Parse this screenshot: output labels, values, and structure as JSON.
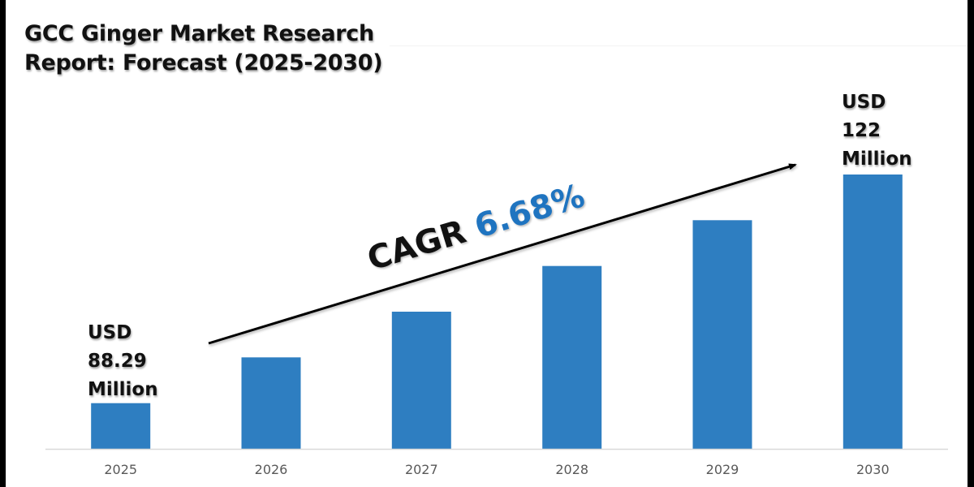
{
  "title": {
    "line1": "GCC Ginger Market Research",
    "line2": "Report: Forecast (2025-2030)"
  },
  "colors": {
    "bar": "#2e7ec1",
    "cagr_value": "#1f74c0",
    "tick_label": "#595959",
    "axis": "#d9d9d9",
    "text": "#111111"
  },
  "annotations": {
    "start": {
      "line1": "USD",
      "line2": "88.29",
      "line3": "Million"
    },
    "end": {
      "line1": "USD",
      "line2": "122",
      "line3": "Million"
    },
    "cagr_label": "CAGR",
    "cagr_value": "6.68%"
  },
  "chart_data": {
    "type": "bar",
    "title": "GCC Ginger Market Research Report: Forecast (2025-2030)",
    "xlabel": "",
    "ylabel": "",
    "unit": "USD Million",
    "categories": [
      "2025",
      "2026",
      "2027",
      "2028",
      "2029",
      "2030"
    ],
    "values": [
      88.29,
      null,
      null,
      null,
      null,
      122
    ],
    "labeled_values": {
      "2025": 88.29,
      "2030": 122
    },
    "relative_bar_heights": [
      1,
      2,
      3,
      4,
      5,
      6
    ],
    "cagr_percent": 6.68,
    "grid": false,
    "legend": "none",
    "trend_arrow": "rising, from 2025 toward 2030"
  }
}
